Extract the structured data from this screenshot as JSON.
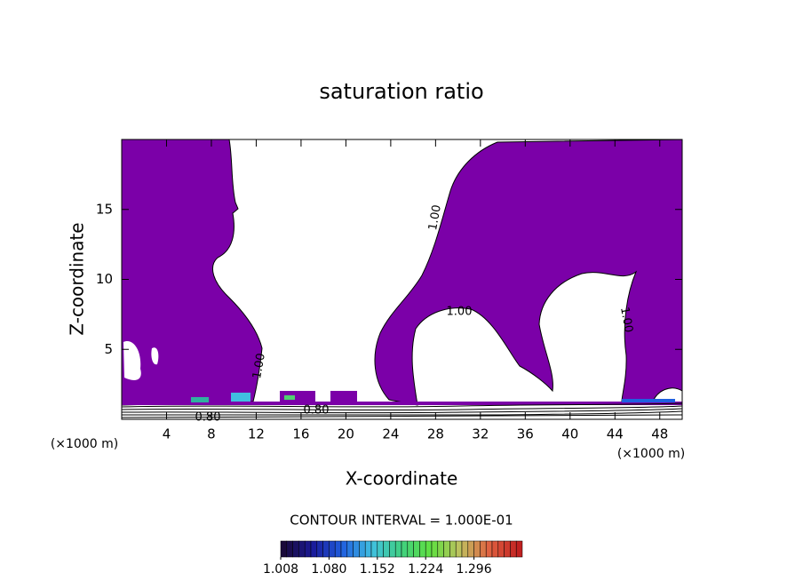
{
  "chart_data": {
    "type": "contour",
    "title": "saturation ratio",
    "x_label": "X-coordinate",
    "y_label": "Z-coordinate",
    "x_unit": "(×1000 m)",
    "x_unit_right": "(×1000 m)",
    "xlim": [
      0,
      50
    ],
    "ylim": [
      0,
      20
    ],
    "xticks": [
      4,
      8,
      12,
      16,
      20,
      24,
      28,
      32,
      36,
      40,
      44,
      48
    ],
    "yticks": [
      5,
      10,
      15
    ],
    "fill_color": "#7b00a8",
    "contour_labels": [
      "1.00",
      "1.00",
      "1.00",
      "1.00",
      "0.80",
      "0.80"
    ],
    "contour_interval": "CONTOUR INTERVAL = 1.000E-01",
    "colorbar": {
      "range": [
        1.008,
        1.368
      ],
      "ticks": [
        1.008,
        {
          "value": 1.08,
          "label": "1.080"
        },
        1.152,
        1.224,
        1.296
      ],
      "colors": [
        "#1a0a3a",
        "#1a1a9a",
        "#2060e0",
        "#40c0e0",
        "#40d080",
        "#60e040",
        "#c0c060",
        "#e06040",
        "#c02020"
      ]
    }
  }
}
